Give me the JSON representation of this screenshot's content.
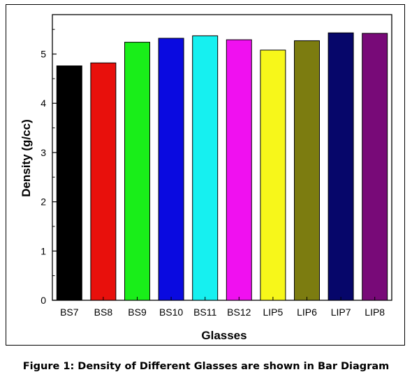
{
  "caption": "Figure 1: Density of Different Glasses are shown in Bar Diagram",
  "chart_data": {
    "type": "bar",
    "title": "",
    "xlabel": "Glasses",
    "ylabel": "Density (g/cc)",
    "categories": [
      "BS7",
      "BS8",
      "BS9",
      "BS10",
      "BS11",
      "BS12",
      "LIP5",
      "LIP6",
      "LIP7",
      "LIP8"
    ],
    "values": [
      4.76,
      4.82,
      5.24,
      5.32,
      5.37,
      5.29,
      5.08,
      5.27,
      5.43,
      5.42
    ],
    "colors": [
      "#000000",
      "#e8100c",
      "#19ee19",
      "#0a0ae0",
      "#16f0f0",
      "#f010f0",
      "#f7f71a",
      "#7c7c10",
      "#06066a",
      "#780a78"
    ],
    "ylim": [
      0,
      5.8
    ],
    "yticks": [
      0,
      1,
      2,
      3,
      4,
      5
    ],
    "grid": false,
    "legend": "none"
  }
}
